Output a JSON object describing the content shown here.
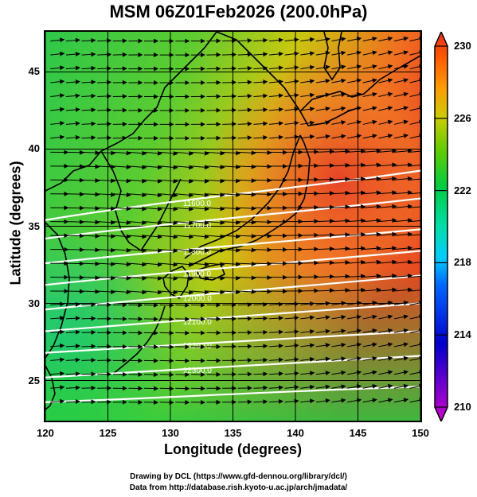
{
  "title": "MSM 06Z01Feb2026 (200.0hPa)",
  "chart_data": {
    "type": "map",
    "title": "MSM 06Z01Feb2026 (200.0hPa)",
    "xlabel": "Longitude (degrees)",
    "ylabel": "Latitude  (degrees)",
    "xlim": [
      120,
      150
    ],
    "ylim": [
      22.4,
      47.6
    ],
    "x_ticks": [
      "120",
      "125",
      "130",
      "135",
      "140",
      "145",
      "150"
    ],
    "y_ticks": [
      "25",
      "30",
      "35",
      "40",
      "45"
    ],
    "x_tick_values": [
      120,
      125,
      130,
      135,
      140,
      145,
      150
    ],
    "y_tick_values": [
      25,
      30,
      35,
      40,
      45
    ],
    "grid": true,
    "colorbar": {
      "min": 210,
      "max": 230,
      "tick_labels": [
        "230",
        "226",
        "222",
        "218",
        "214",
        "210"
      ],
      "tick_values": [
        230,
        226,
        222,
        218,
        214,
        210
      ],
      "colors": [
        "#cc00cc",
        "#6a00cc",
        "#0000cc",
        "#0066ff",
        "#00ccff",
        "#00ddaa",
        "#00cc44",
        "#66cc00",
        "#cccc00",
        "#ff9900",
        "#ff5500",
        "#e83020"
      ]
    },
    "contours": [
      {
        "label": "11600.0",
        "lat_west": 35.4,
        "lat_east": 38.6
      },
      {
        "label": "11700.0",
        "lat_west": 34.2,
        "lat_east": 36.8
      },
      {
        "label": "11800.0",
        "lat_west": 32.6,
        "lat_east": 34.8
      },
      {
        "label": "11900.0",
        "lat_west": 31.2,
        "lat_east": 33.4
      },
      {
        "label": "12000.0",
        "lat_west": 29.6,
        "lat_east": 31.8
      },
      {
        "label": "12100.0",
        "lat_west": 28.2,
        "lat_east": 30.0
      },
      {
        "label": "12200.0",
        "lat_west": 26.8,
        "lat_east": 28.2
      },
      {
        "label": "12300.0",
        "lat_west": 25.2,
        "lat_east": 26.6
      },
      {
        "label": "",
        "lat_west": 23.6,
        "lat_east": 24.6
      }
    ],
    "contour_color": "#ffffff",
    "coastline_color": "#000000",
    "wind_color": "#000000"
  },
  "axes": {
    "x_title": "Longitude (degrees)",
    "y_title": "Latitude  (degrees)"
  },
  "footer": {
    "line1": "Drawing by DCL (https://www.gfd-dennou.org/library/dcl/)",
    "line2": "Data from http://database.rish.kyoto-u.ac.jp/arch/jmadata/"
  }
}
